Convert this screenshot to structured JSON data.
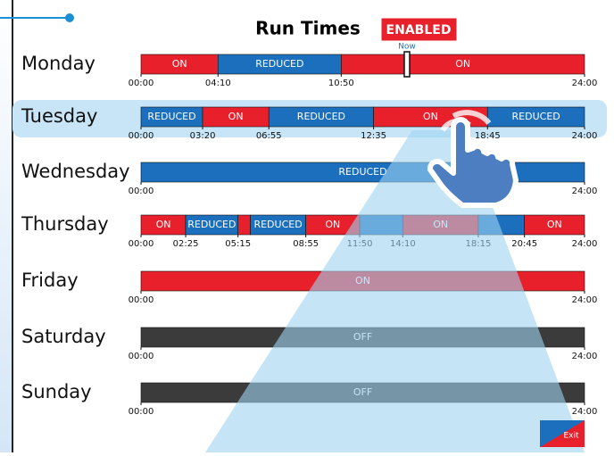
{
  "header": {
    "title": "Run Times",
    "status": "ENABLED",
    "now_label": "Now"
  },
  "days": [
    {
      "name": "Monday",
      "segments": [
        {
          "start": 0,
          "end": 250,
          "label": "ON",
          "color": "#e8202c"
        },
        {
          "start": 250,
          "end": 650,
          "label": "REDUCED",
          "color": "#1b6fbd"
        },
        {
          "start": 650,
          "end": 1440,
          "label": "ON",
          "color": "#e8202c"
        }
      ],
      "ticks": [
        {
          "value": 0,
          "label": "00:00"
        },
        {
          "value": 250,
          "label": "04:10"
        },
        {
          "value": 650,
          "label": "10:50"
        },
        {
          "value": 1440,
          "label": "24:00"
        }
      ]
    },
    {
      "name": "Tuesday",
      "segments": [
        {
          "start": 0,
          "end": 200,
          "label": "REDUCED",
          "color": "#1b6fbd"
        },
        {
          "start": 200,
          "end": 415,
          "label": "ON",
          "color": "#e8202c"
        },
        {
          "start": 415,
          "end": 755,
          "label": "REDUCED",
          "color": "#1b6fbd"
        },
        {
          "start": 755,
          "end": 1125,
          "label": "ON",
          "color": "#e8202c"
        },
        {
          "start": 1125,
          "end": 1440,
          "label": "REDUCED",
          "color": "#1b6fbd"
        }
      ],
      "ticks": [
        {
          "value": 0,
          "label": "00:00"
        },
        {
          "value": 200,
          "label": "03:20"
        },
        {
          "value": 415,
          "label": "06:55"
        },
        {
          "value": 755,
          "label": "12:35"
        },
        {
          "value": 1125,
          "label": "18:45"
        },
        {
          "value": 1440,
          "label": "24:00"
        }
      ]
    },
    {
      "name": "Wednesday",
      "segments": [
        {
          "start": 0,
          "end": 1440,
          "label": "REDUCED",
          "color": "#1b6fbd"
        }
      ],
      "ticks": [
        {
          "value": 0,
          "label": "00:00"
        },
        {
          "value": 1440,
          "label": "24:00"
        }
      ]
    },
    {
      "name": "Thursday",
      "segments": [
        {
          "start": 0,
          "end": 145,
          "label": "ON",
          "color": "#e8202c"
        },
        {
          "start": 145,
          "end": 315,
          "label": "REDUCED",
          "color": "#1b6fbd"
        },
        {
          "start": 315,
          "end": 355,
          "color": "#e8202c"
        },
        {
          "start": 355,
          "end": 535,
          "label": "REDUCED",
          "color": "#1b6fbd"
        },
        {
          "start": 535,
          "end": 710,
          "label": "ON",
          "color": "#e8202c"
        },
        {
          "start": 710,
          "end": 850,
          "color": "#1b6fbd"
        },
        {
          "start": 850,
          "end": 1095,
          "label": "ON",
          "color": "#e8202c"
        },
        {
          "start": 1095,
          "end": 1245,
          "color": "#1b6fbd"
        },
        {
          "start": 1245,
          "end": 1440,
          "label": "ON",
          "color": "#e8202c"
        }
      ],
      "ticks": [
        {
          "value": 0,
          "label": "00:00"
        },
        {
          "value": 145,
          "label": "02:25"
        },
        {
          "value": 315,
          "label": "05:15"
        },
        {
          "value": 535,
          "label": "08:55"
        },
        {
          "value": 710,
          "label": "11:50"
        },
        {
          "value": 850,
          "label": "14:10"
        },
        {
          "value": 1095,
          "label": "18:15"
        },
        {
          "value": 1245,
          "label": "20:45"
        },
        {
          "value": 1440,
          "label": "24:00"
        }
      ]
    },
    {
      "name": "Friday",
      "segments": [
        {
          "start": 0,
          "end": 1440,
          "label": "ON",
          "color": "#e8202c"
        }
      ],
      "ticks": [
        {
          "value": 0,
          "label": "00:00"
        },
        {
          "value": 1440,
          "label": "24:00"
        }
      ]
    },
    {
      "name": "Saturday",
      "segments": [
        {
          "start": 0,
          "end": 1440,
          "label": "OFF",
          "color": "#3b3b3b"
        }
      ],
      "ticks": [
        {
          "value": 0,
          "label": "00:00"
        },
        {
          "value": 1440,
          "label": "24:00"
        }
      ]
    },
    {
      "name": "Sunday",
      "segments": [
        {
          "start": 0,
          "end": 1440,
          "label": "OFF",
          "color": "#3b3b3b"
        }
      ],
      "ticks": [
        {
          "value": 0,
          "label": "00:00"
        },
        {
          "value": 1440,
          "label": "24:00"
        }
      ]
    }
  ],
  "exit": "Exit"
}
